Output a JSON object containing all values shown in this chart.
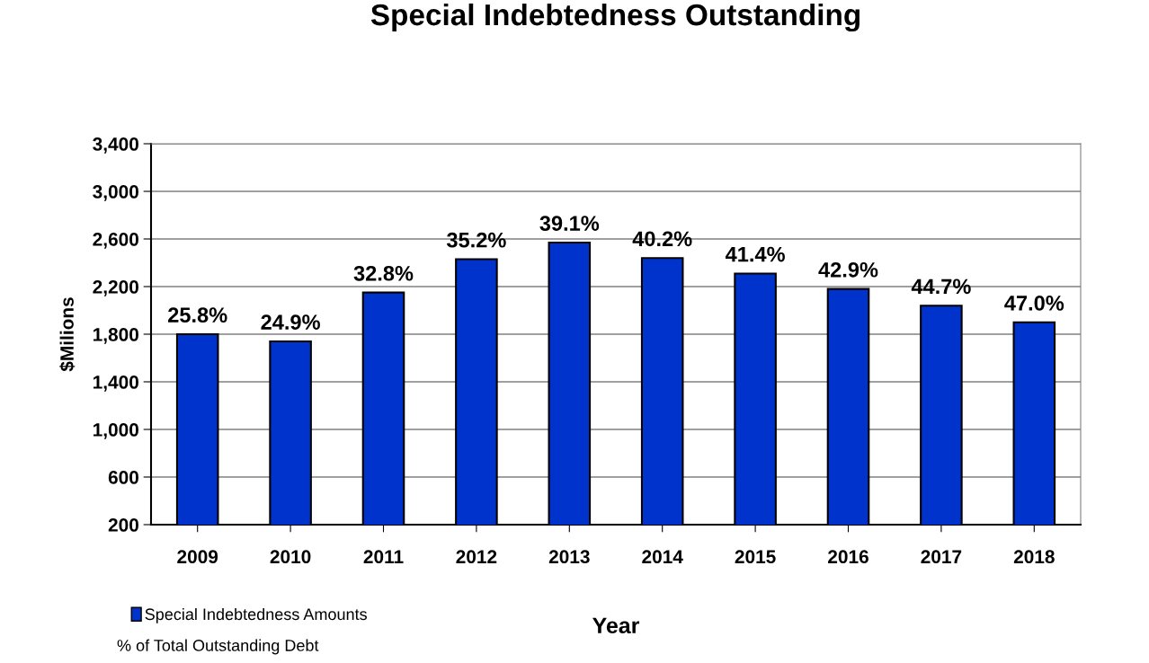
{
  "chart_data": {
    "type": "bar",
    "title": "Special Indebtedness Outstanding",
    "xlabel": "Year",
    "ylabel": "$Milions",
    "categories": [
      "2009",
      "2010",
      "2011",
      "2012",
      "2013",
      "2014",
      "2015",
      "2016",
      "2017",
      "2018"
    ],
    "series": [
      {
        "name": "Special Indebtedness Amounts",
        "color": "#0033cc",
        "values": [
          1800,
          1740,
          2150,
          2430,
          2570,
          2440,
          2310,
          2180,
          2040,
          1900
        ]
      }
    ],
    "value_labels": [
      "25.8%",
      "24.9%",
      "32.8%",
      "35.2%",
      "39.1%",
      "40.2%",
      "41.4%",
      "42.9%",
      "44.7%",
      "47.0%"
    ],
    "ylim": [
      200,
      3400
    ],
    "yticks": [
      200,
      600,
      {
        "value": 1000,
        "label": "1,000"
      },
      {
        "value": 1400,
        "label": "1,400"
      },
      {
        "value": 1800,
        "label": "1,800"
      },
      {
        "value": 2200,
        "label": "2,200"
      },
      {
        "value": 2600,
        "label": "2,600"
      },
      {
        "value": 3000,
        "label": "3,000"
      },
      {
        "value": 3400,
        "label": "3,400"
      }
    ],
    "grid": "y",
    "legend": "bottom left",
    "annotations": [
      "% of Total Outstanding Debt"
    ]
  }
}
